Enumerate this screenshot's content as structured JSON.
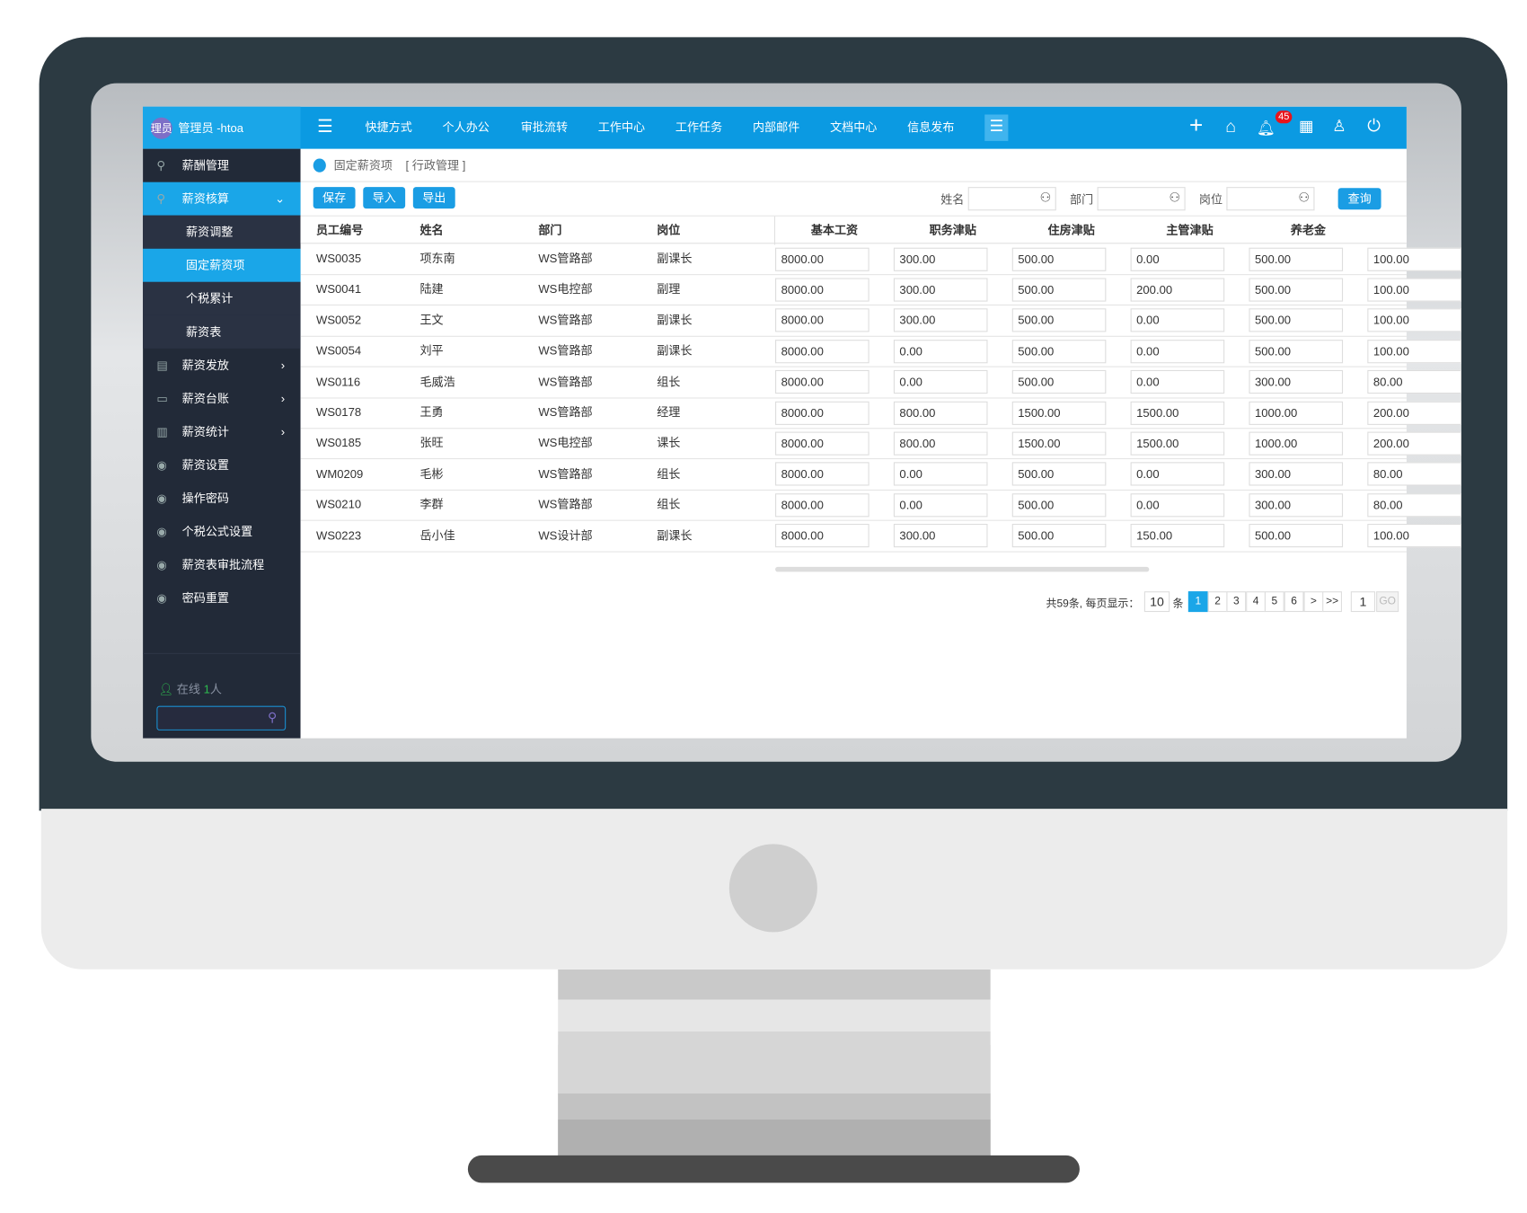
{
  "header": {
    "avatar_text": "理员",
    "user": "管理员 -htoa",
    "nav": [
      "快捷方式",
      "个人办公",
      "审批流转",
      "工作中心",
      "工作任务",
      "内部邮件",
      "文档中心",
      "信息发布"
    ],
    "notification_count": "45"
  },
  "sidebar": {
    "items": [
      {
        "label": "薪酬管理",
        "icon": "user-icon"
      },
      {
        "label": "薪资核算",
        "icon": "user-icon",
        "expanded": true
      },
      {
        "label": "薪资调整",
        "sub": true
      },
      {
        "label": "固定薪资项",
        "sub": true,
        "active": true
      },
      {
        "label": "个税累计",
        "sub": true
      },
      {
        "label": "薪资表",
        "sub": true
      },
      {
        "label": "薪资发放",
        "icon": "document-icon",
        "chevron": true
      },
      {
        "label": "薪资台账",
        "icon": "wallet-icon",
        "chevron": true
      },
      {
        "label": "薪资统计",
        "icon": "chart-icon",
        "chevron": true
      },
      {
        "label": "薪资设置",
        "icon": "badge-icon"
      },
      {
        "label": "操作密码",
        "icon": "hr-icon"
      },
      {
        "label": "个税公式设置",
        "icon": "hr-icon"
      },
      {
        "label": "薪资表审批流程",
        "icon": "hr-icon"
      },
      {
        "label": "密码重置",
        "icon": "hr-icon"
      }
    ],
    "online_label": "在线",
    "online_count": "1",
    "online_unit": "人",
    "search_value": ""
  },
  "breadcrumb": {
    "page": "固定薪资项",
    "section": "[ 行政管理 ]"
  },
  "toolbar": {
    "save": "保存",
    "import": "导入",
    "export": "导出",
    "name_label": "姓名",
    "dept_label": "部门",
    "post_label": "岗位",
    "query": "查询"
  },
  "table": {
    "columns": [
      "员工编号",
      "姓名",
      "部门",
      "岗位",
      "基本工资",
      "职务津贴",
      "住房津贴",
      "主管津贴",
      "养老金",
      ""
    ],
    "rows": [
      [
        "WS0035",
        "项东南",
        "WS管路部",
        "副课长",
        "8000.00",
        "300.00",
        "500.00",
        "0.00",
        "500.00",
        "100.00"
      ],
      [
        "WS0041",
        "陆建",
        "WS电控部",
        "副理",
        "8000.00",
        "300.00",
        "500.00",
        "200.00",
        "500.00",
        "100.00"
      ],
      [
        "WS0052",
        "王文",
        "WS管路部",
        "副课长",
        "8000.00",
        "300.00",
        "500.00",
        "0.00",
        "500.00",
        "100.00"
      ],
      [
        "WS0054",
        "刘平",
        "WS管路部",
        "副课长",
        "8000.00",
        "0.00",
        "500.00",
        "0.00",
        "500.00",
        "100.00"
      ],
      [
        "WS0116",
        "毛威浩",
        "WS管路部",
        "组长",
        "8000.00",
        "0.00",
        "500.00",
        "0.00",
        "300.00",
        "80.00"
      ],
      [
        "WS0178",
        "王勇",
        "WS管路部",
        "经理",
        "8000.00",
        "800.00",
        "1500.00",
        "1500.00",
        "1000.00",
        "200.00"
      ],
      [
        "WS0185",
        "张旺",
        "WS电控部",
        "课长",
        "8000.00",
        "800.00",
        "1500.00",
        "1500.00",
        "1000.00",
        "200.00"
      ],
      [
        "WM0209",
        "毛彬",
        "WS管路部",
        "组长",
        "8000.00",
        "0.00",
        "500.00",
        "0.00",
        "300.00",
        "80.00"
      ],
      [
        "WS0210",
        "李群",
        "WS管路部",
        "组长",
        "8000.00",
        "0.00",
        "500.00",
        "0.00",
        "300.00",
        "80.00"
      ],
      [
        "WS0223",
        "岳小佳",
        "WS设计部",
        "副课长",
        "8000.00",
        "300.00",
        "500.00",
        "150.00",
        "500.00",
        "100.00"
      ]
    ]
  },
  "pagination": {
    "summary": "共59条, 每页显示：",
    "page_size": "10",
    "unit": "条",
    "pages": [
      "1",
      "2",
      "3",
      "4",
      "5",
      "6"
    ],
    "next": ">",
    "last": ">>",
    "current": 1,
    "goto_value": "1",
    "go": "GO"
  },
  "colors": {
    "primary": "#0b9ae2",
    "sidebar": "#222a38",
    "badge": "#e8141b"
  }
}
